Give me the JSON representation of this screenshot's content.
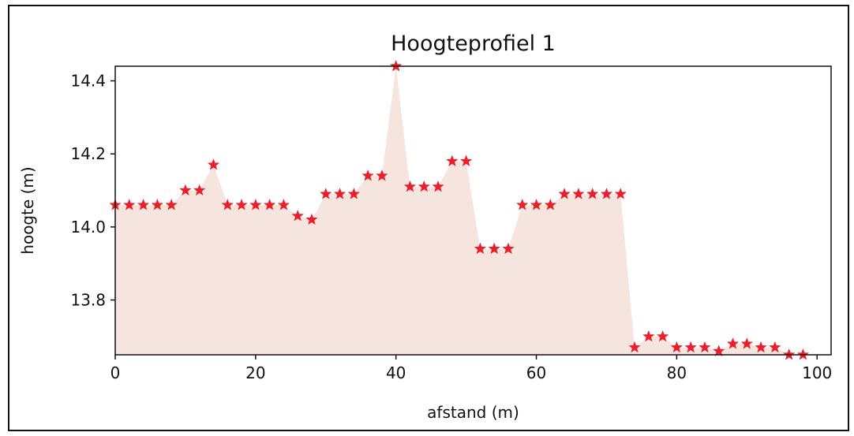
{
  "chart_data": {
    "type": "area",
    "title": "Hoogteprofiel 1",
    "xlabel": "afstand (m)",
    "ylabel": "hoogte (m)",
    "xlim": [
      0,
      102
    ],
    "ylim": [
      13.65,
      14.44
    ],
    "xticks": [
      0,
      20,
      40,
      60,
      80,
      100
    ],
    "xtick_labels": [
      "0",
      "20",
      "40",
      "60",
      "80",
      "100"
    ],
    "yticks": [
      13.8,
      14.0,
      14.2,
      14.4
    ],
    "ytick_labels": [
      "13.8",
      "14.0",
      "14.2",
      "14.4"
    ],
    "grid": false,
    "series": [
      {
        "marker": "star",
        "marker_color": "#e8202a",
        "fill_color": "#f6e4de",
        "x": [
          0,
          2,
          4,
          6,
          8,
          10,
          12,
          14,
          16,
          18,
          20,
          22,
          24,
          26,
          28,
          30,
          32,
          34,
          36,
          38,
          40,
          42,
          44,
          46,
          48,
          50,
          52,
          54,
          56,
          58,
          60,
          62,
          64,
          66,
          68,
          70,
          72,
          74,
          76,
          78,
          80,
          82,
          84,
          86,
          88,
          90,
          92,
          94,
          96,
          98
        ],
        "y": [
          14.06,
          14.06,
          14.06,
          14.06,
          14.06,
          14.1,
          14.1,
          14.17,
          14.06,
          14.06,
          14.06,
          14.06,
          14.06,
          14.03,
          14.02,
          14.09,
          14.09,
          14.09,
          14.14,
          14.14,
          14.44,
          14.11,
          14.11,
          14.11,
          14.18,
          14.18,
          13.94,
          13.94,
          13.94,
          14.06,
          14.06,
          14.06,
          14.09,
          14.09,
          14.09,
          14.09,
          14.09,
          13.67,
          13.7,
          13.7,
          13.67,
          13.67,
          13.67,
          13.66,
          13.68,
          13.68,
          13.67,
          13.67,
          13.65,
          13.65
        ]
      }
    ]
  }
}
